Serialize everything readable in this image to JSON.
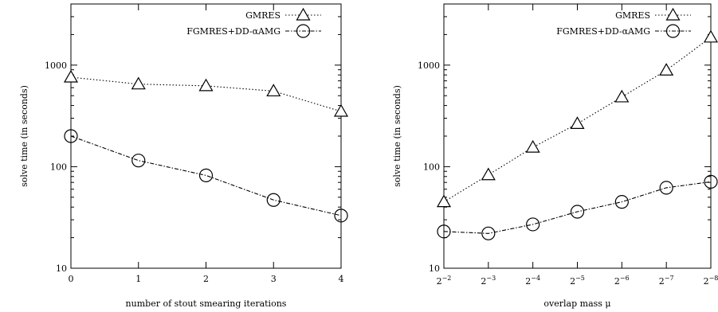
{
  "chart_data": [
    {
      "type": "line",
      "xlabel": "number of stout smearing iterations",
      "ylabel": "solve time (in seconds)",
      "yscale": "log",
      "ylim": [
        10,
        4000
      ],
      "xlim": [
        0,
        4
      ],
      "x": [
        0,
        1,
        2,
        3,
        4
      ],
      "xtick_labels": [
        "0",
        "1",
        "2",
        "3",
        "4"
      ],
      "ytick_labels": [
        "10",
        "100",
        "1000"
      ],
      "yticks": [
        10,
        100,
        1000
      ],
      "legend_position": "top-right",
      "grid": false,
      "series": [
        {
          "name": "GMRES",
          "marker": "triangle",
          "dash": "dotted",
          "values": [
            760,
            650,
            625,
            555,
            350
          ]
        },
        {
          "name": "FGMRES+DD-αAMG",
          "marker": "circle",
          "dash": "dash-dot",
          "values": [
            200,
            115,
            82,
            47,
            33
          ]
        }
      ]
    },
    {
      "type": "line",
      "xlabel": "overlap mass μ",
      "ylabel": "solve time (in seconds)",
      "yscale": "log",
      "ylim": [
        10,
        4000
      ],
      "xlim": [
        -2,
        -8
      ],
      "x": [
        -2,
        -3,
        -4,
        -5,
        -6,
        -7,
        -8
      ],
      "xtick_labels": [
        {
          "base": "2",
          "exp": "−2"
        },
        {
          "base": "2",
          "exp": "−3"
        },
        {
          "base": "2",
          "exp": "−4"
        },
        {
          "base": "2",
          "exp": "−5"
        },
        {
          "base": "2",
          "exp": "−6"
        },
        {
          "base": "2",
          "exp": "−7"
        },
        {
          "base": "2",
          "exp": "−8"
        }
      ],
      "ytick_labels": [
        "10",
        "100",
        "1000"
      ],
      "yticks": [
        10,
        100,
        1000
      ],
      "legend_position": "top-right",
      "grid": false,
      "series": [
        {
          "name": "GMRES",
          "marker": "triangle",
          "dash": "dotted",
          "values": [
            45,
            83,
            155,
            265,
            485,
            890,
            1880
          ]
        },
        {
          "name": "FGMRES+DD-αAMG",
          "marker": "circle",
          "dash": "dash-dot",
          "values": [
            23,
            22,
            27,
            36,
            45,
            62,
            71
          ]
        }
      ]
    }
  ]
}
